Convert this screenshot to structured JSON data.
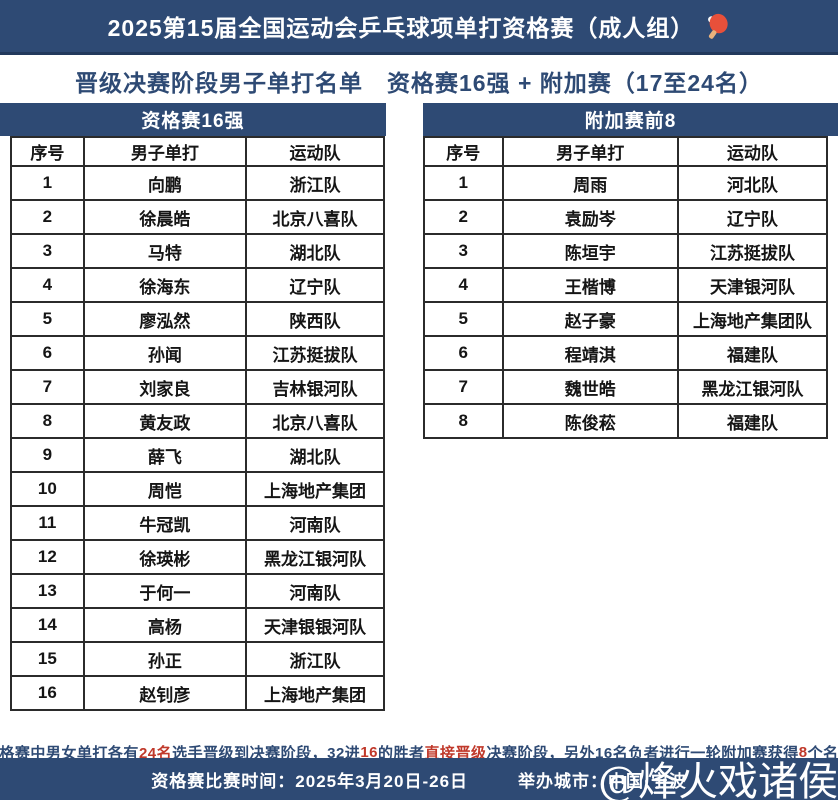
{
  "page": {
    "title": "2025第15届全国运动会乒乓球项单打资格赛（成人组）",
    "subtitle": "晋级决赛阶段男子单打名单　资格赛16强 + 附加赛（17至24名）",
    "title_icon": "ping-pong-paddle"
  },
  "colors": {
    "navy": "#2e4a74",
    "navy_dark": "#22395c",
    "red": "#c0392b",
    "table_border": "#2b2b2b"
  },
  "tables": [
    {
      "id": "qualifiers",
      "title": "资格赛16强",
      "columns": [
        "序号",
        "男子单打",
        "运动队"
      ],
      "rows": [
        [
          "1",
          "向鹏",
          "浙江队"
        ],
        [
          "2",
          "徐晨皓",
          "北京八喜队"
        ],
        [
          "3",
          "马特",
          "湖北队"
        ],
        [
          "4",
          "徐海东",
          "辽宁队"
        ],
        [
          "5",
          "廖泓然",
          "陕西队"
        ],
        [
          "6",
          "孙闻",
          "江苏挺拔队"
        ],
        [
          "7",
          "刘家良",
          "吉林银河队"
        ],
        [
          "8",
          "黄友政",
          "北京八喜队"
        ],
        [
          "9",
          "薛飞",
          "湖北队"
        ],
        [
          "10",
          "周恺",
          "上海地产集团"
        ],
        [
          "11",
          "牛冠凯",
          "河南队"
        ],
        [
          "12",
          "徐瑛彬",
          "黑龙江银河队"
        ],
        [
          "13",
          "于何一",
          "河南队"
        ],
        [
          "14",
          "高杨",
          "天津银银河队"
        ],
        [
          "15",
          "孙正",
          "浙江队"
        ],
        [
          "16",
          "赵钊彦",
          "上海地产集团"
        ]
      ]
    },
    {
      "id": "playoff",
      "title": "附加赛前8",
      "columns": [
        "序号",
        "男子单打",
        "运动队"
      ],
      "rows": [
        [
          "1",
          "周雨",
          "河北队"
        ],
        [
          "2",
          "袁励岑",
          "辽宁队"
        ],
        [
          "3",
          "陈垣宇",
          "江苏挺拔队"
        ],
        [
          "4",
          "王楷博",
          "天津银河队"
        ],
        [
          "5",
          "赵子豪",
          "上海地产集团队"
        ],
        [
          "6",
          "程靖淇",
          "福建队"
        ],
        [
          "7",
          "魏世皓",
          "黑龙江银河队"
        ],
        [
          "8",
          "陈俊菘",
          "福建队"
        ]
      ]
    }
  ],
  "note": {
    "segments": [
      {
        "text": "资格赛中男女单打各有",
        "red": false
      },
      {
        "text": "24名",
        "red": true
      },
      {
        "text": "选手晋级到决赛阶段，32进",
        "red": false
      },
      {
        "text": "16",
        "red": true
      },
      {
        "text": "的胜者",
        "red": false
      },
      {
        "text": "直接晋级",
        "red": true
      },
      {
        "text": "决赛阶段，另外16名负者进行一轮附加赛获得",
        "red": false
      },
      {
        "text": "8",
        "red": true
      },
      {
        "text": "个名额",
        "red": false
      }
    ]
  },
  "footer": {
    "schedule_label": "资格赛比赛时间：2025年3月20日-26日",
    "host_label": "举办城市：中国·宁波",
    "watermark": "@烽火戏诸侯"
  }
}
